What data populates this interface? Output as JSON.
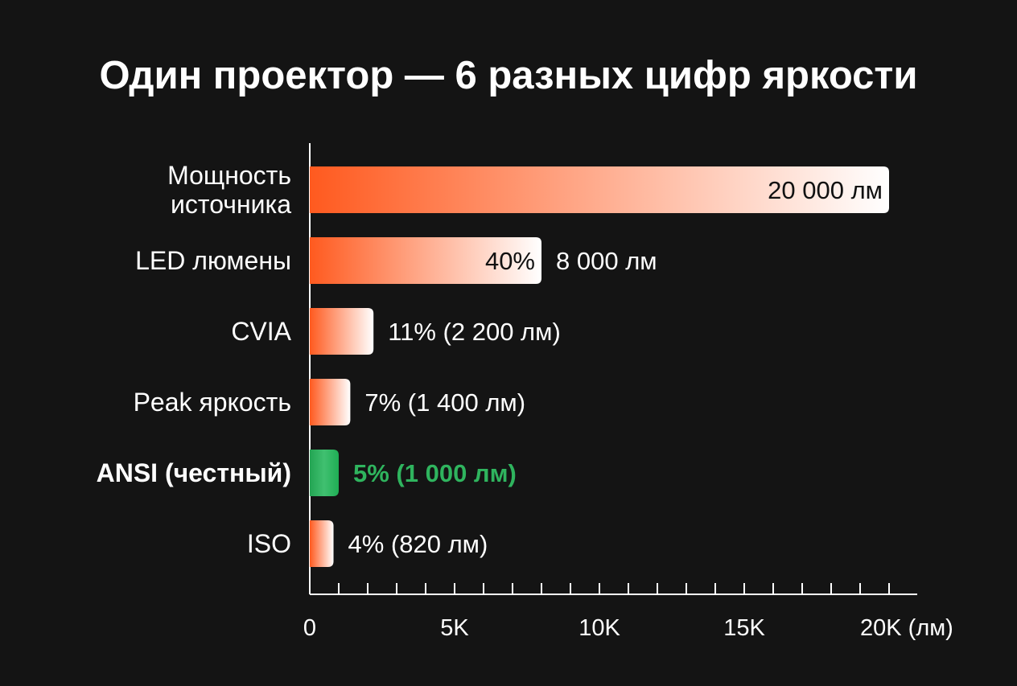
{
  "chart_data": {
    "type": "bar",
    "orientation": "horizontal",
    "title": "Один проектор — 6 разных цифр яркости",
    "xlabel": "",
    "ylabel": "",
    "xlim": [
      0,
      20000
    ],
    "x_ticks": [
      {
        "value": 0,
        "label": "0"
      },
      {
        "value": 5000,
        "label": "5K"
      },
      {
        "value": 10000,
        "label": "10K"
      },
      {
        "value": 15000,
        "label": "15K"
      },
      {
        "value": 20000,
        "label": "20K (лм)"
      }
    ],
    "minor_tick_step": 1000,
    "grid": false,
    "categories": [
      {
        "label": [
          "Мощность",
          "источника"
        ],
        "value": 20000,
        "inside_label": "20 000 лм",
        "outside_label": "",
        "highlight": false
      },
      {
        "label": [
          "LED люмены"
        ],
        "value": 8000,
        "inside_label": "40%",
        "outside_label": "8 000 лм",
        "highlight": false
      },
      {
        "label": [
          "CVIA"
        ],
        "value": 2200,
        "inside_label": "",
        "outside_label": "11% (2 200 лм)",
        "highlight": false
      },
      {
        "label": [
          "Peak яркость"
        ],
        "value": 1400,
        "inside_label": "",
        "outside_label": "7% (1 400 лм)",
        "highlight": false
      },
      {
        "label": [
          "ANSI (честный)"
        ],
        "value": 1000,
        "inside_label": "",
        "outside_label": "5% (1 000 лм)",
        "highlight": true
      },
      {
        "label": [
          "ISO"
        ],
        "value": 820,
        "inside_label": "",
        "outside_label": "4% (820 лм)",
        "highlight": false
      }
    ],
    "colors": {
      "background": "#141414",
      "bar": "#ff5a1f",
      "bar_fade": "#ffffff",
      "highlight": "#2fb45e",
      "text": "#ffffff"
    }
  }
}
